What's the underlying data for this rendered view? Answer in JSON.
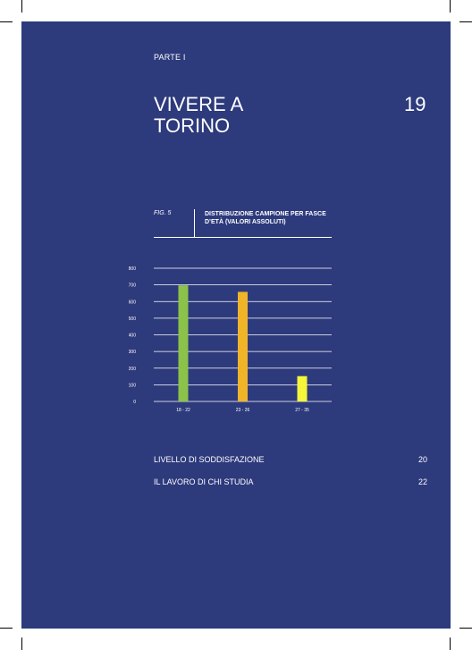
{
  "header": {
    "part": "PARTE I",
    "title": "VIVERE A TORINO",
    "page_number": "19"
  },
  "figure": {
    "label": "FIG. 5",
    "title": "DISTRIBUZIONE CAMPIONE PER FASCE D’ETÀ (VALORI ASSOLUTI)"
  },
  "chart_data": {
    "type": "bar",
    "title": "DISTRIBUZIONE CAMPIONE PER FASCE D’ETÀ (VALORI ASSOLUTI)",
    "xlabel": "",
    "ylabel": "",
    "categories": [
      "18 - 22",
      "23 - 26",
      "27 - 35"
    ],
    "values": [
      697,
      658,
      152
    ],
    "bar_colors": [
      "#8bc34a",
      "#f0b429",
      "#f5f53a"
    ],
    "yticks": [
      "0",
      "100",
      "200",
      "300",
      "400",
      "500",
      "600",
      "700",
      "800"
    ],
    "ylim": [
      0,
      800
    ],
    "grid": true
  },
  "toc": [
    {
      "label": "LIVELLO DI SODDISFAZIONE",
      "page": "20"
    },
    {
      "label": "IL LAVORO DI CHI STUDIA",
      "page": "22"
    }
  ],
  "colors": {
    "background": "#2d3a7c",
    "text": "#ffffff"
  }
}
